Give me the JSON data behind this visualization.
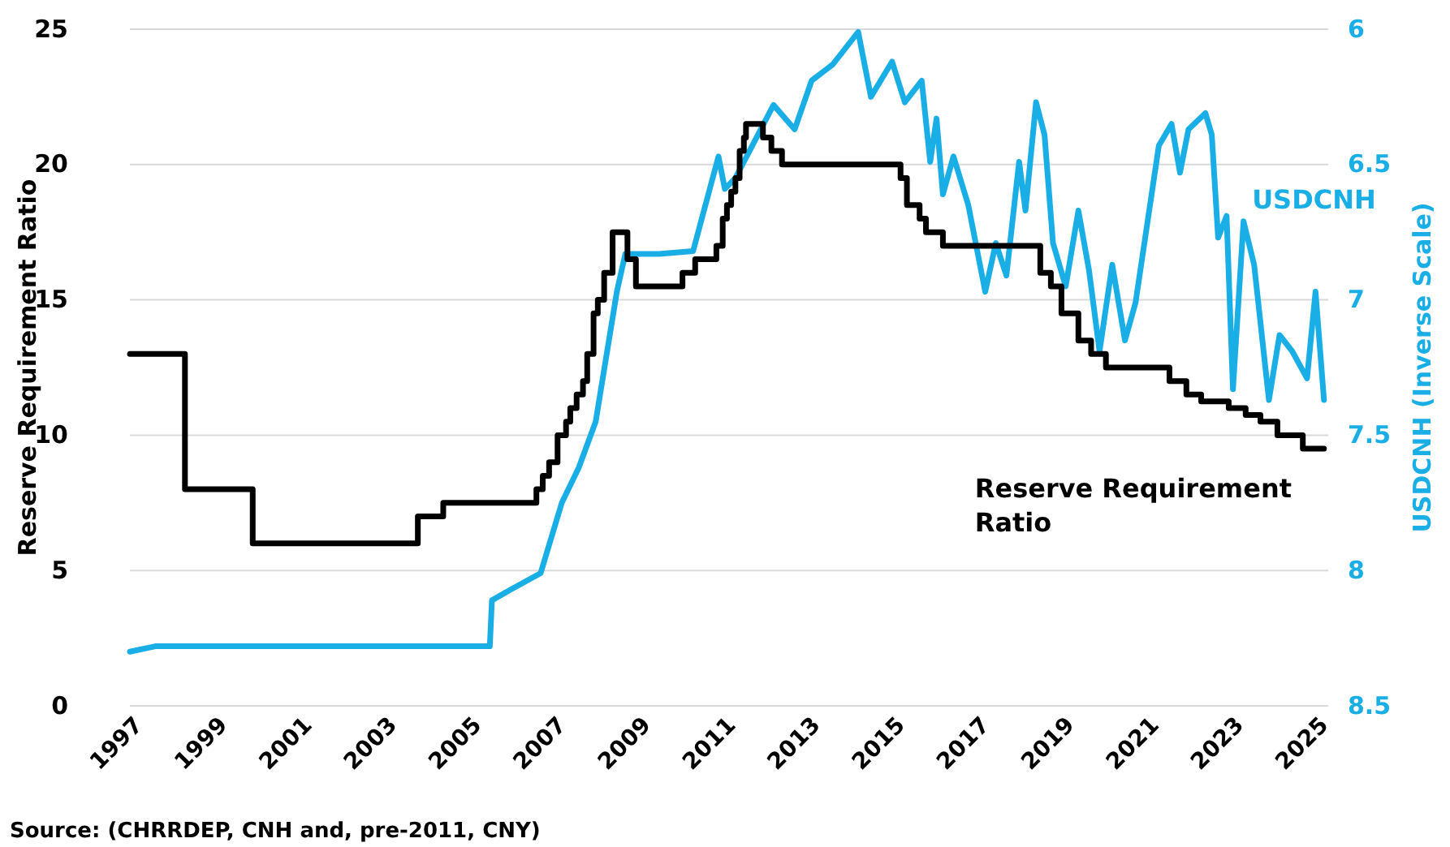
{
  "chart_data": {
    "type": "line",
    "ylabel": "Reserve Requirement Ratio",
    "y2label": "USDCNH (Inverse Scale)",
    "xlim": [
      1997,
      2025.3
    ],
    "xticks": [
      1997,
      1999,
      2001,
      2003,
      2005,
      2007,
      2009,
      2011,
      2013,
      2015,
      2017,
      2019,
      2021,
      2023,
      2025
    ],
    "ylim": [
      0,
      25
    ],
    "yticks": [
      0,
      5,
      10,
      15,
      20,
      25
    ],
    "y2lim": [
      8.5,
      6
    ],
    "y2ticks": [
      8.5,
      8,
      7.5,
      7,
      6.5,
      6
    ],
    "grid": "y",
    "line_style": "solid",
    "marker": "none",
    "series": [
      {
        "name": "Reserve Requirement Ratio",
        "type": "step",
        "color": "#000000",
        "x": [
          1997,
          1998.3,
          1999.9,
          2003.8,
          2004.4,
          2006.6,
          2006.75,
          2006.9,
          2007.1,
          2007.3,
          2007.4,
          2007.55,
          2007.7,
          2007.8,
          2007.95,
          2008.05,
          2008.2,
          2008.4,
          2008.75,
          2008.95,
          2010.05,
          2010.35,
          2010.85,
          2011.0,
          2011.1,
          2011.2,
          2011.3,
          2011.4,
          2011.5,
          2011.55,
          2011.95,
          2012.15,
          2012.4,
          2015.2,
          2015.35,
          2015.65,
          2015.8,
          2016.2,
          2018.5,
          2018.75,
          2019.0,
          2019.4,
          2019.7,
          2020.05,
          2021.55,
          2021.95,
          2022.3,
          2022.95,
          2023.35,
          2023.7,
          2024.1,
          2024.7,
          2025.2
        ],
        "values": [
          13,
          8,
          6,
          7,
          7.5,
          8,
          8.5,
          9,
          10,
          10.5,
          11,
          11.5,
          12,
          13,
          14.5,
          15,
          16,
          17.5,
          16.5,
          15.5,
          16,
          16.5,
          17,
          18,
          18.5,
          19,
          19.5,
          20.5,
          21,
          21.5,
          21,
          20.5,
          20,
          19.5,
          18.5,
          18,
          17.5,
          17,
          16,
          15.5,
          14.5,
          13.5,
          13,
          12.5,
          12,
          11.5,
          11.25,
          11,
          10.75,
          10.5,
          10,
          9.5,
          9.5
        ]
      },
      {
        "name": "USDCNH",
        "axis": "y2",
        "color": "#1aaee6",
        "x": [
          1997,
          1997.6,
          2005.5,
          2005.55,
          2006.0,
          2006.7,
          2007.2,
          2007.6,
          2008.0,
          2008.5,
          2008.7,
          2009.5,
          2010.3,
          2010.9,
          2011.05,
          2011.3,
          2011.7,
          2012.2,
          2012.7,
          2013.1,
          2013.6,
          2014.2,
          2014.5,
          2015.0,
          2015.3,
          2015.7,
          2015.9,
          2016.05,
          2016.2,
          2016.45,
          2016.8,
          2017.2,
          2017.45,
          2017.7,
          2018.0,
          2018.15,
          2018.4,
          2018.6,
          2018.8,
          2019.1,
          2019.4,
          2019.65,
          2019.9,
          2020.2,
          2020.5,
          2020.75,
          2021.3,
          2021.6,
          2021.8,
          2022.0,
          2022.4,
          2022.55,
          2022.7,
          2022.9,
          2023.05,
          2023.3,
          2023.55,
          2023.9,
          2024.15,
          2024.45,
          2024.8,
          2025.0,
          2025.2
        ],
        "values": [
          8.3,
          8.28,
          8.28,
          8.11,
          8.07,
          8.01,
          7.75,
          7.62,
          7.45,
          6.97,
          6.83,
          6.83,
          6.82,
          6.47,
          6.59,
          6.55,
          6.43,
          6.28,
          6.37,
          6.19,
          6.13,
          6.01,
          6.25,
          6.12,
          6.27,
          6.19,
          6.49,
          6.33,
          6.61,
          6.47,
          6.65,
          6.97,
          6.79,
          6.91,
          6.49,
          6.67,
          6.27,
          6.39,
          6.79,
          6.95,
          6.67,
          6.89,
          7.19,
          6.87,
          7.15,
          7.01,
          6.43,
          6.35,
          6.53,
          6.37,
          6.31,
          6.39,
          6.77,
          6.69,
          7.33,
          6.71,
          6.87,
          7.37,
          7.13,
          7.19,
          7.29,
          6.97,
          7.37
        ]
      }
    ],
    "annotations": [
      "Source: (CHRRDEP, CNH and, pre-2011, CNY)"
    ]
  }
}
